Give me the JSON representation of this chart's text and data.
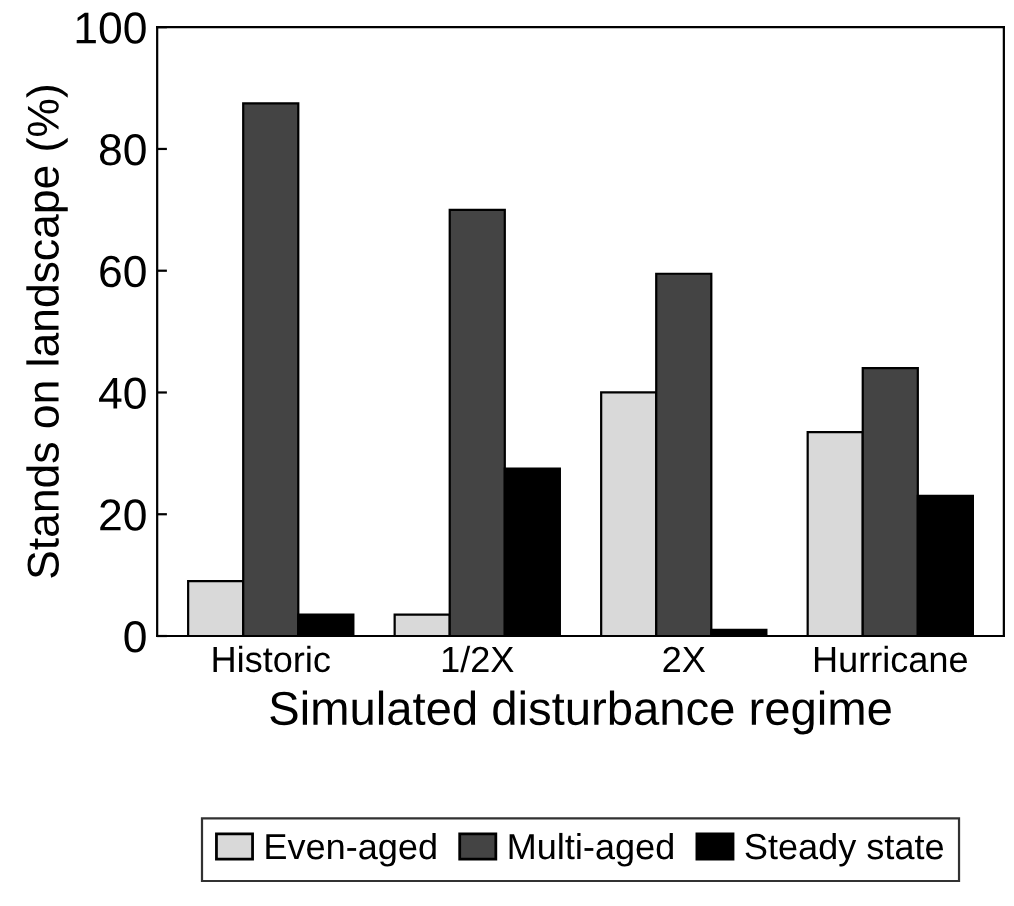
{
  "chart_data": {
    "type": "bar",
    "xlabel": "Simulated disturbance regime",
    "ylabel": "Stands on landscape (%)",
    "categories": [
      "Historic",
      "1/2X",
      "2X",
      "Hurricane"
    ],
    "series": [
      {
        "name": "Even-aged",
        "color": "#d9d9d9",
        "values": [
          9,
          3.5,
          40,
          33.5
        ]
      },
      {
        "name": "Multi-aged",
        "color": "#444444",
        "values": [
          87.5,
          70,
          59.5,
          44
        ]
      },
      {
        "name": "Steady state",
        "color": "#000000",
        "values": [
          3.5,
          27.5,
          1,
          23
        ]
      }
    ],
    "ylim": [
      0,
      100
    ],
    "yticks": [
      0,
      20,
      40,
      60,
      80,
      100
    ],
    "grid": false,
    "legend": "bottom"
  }
}
